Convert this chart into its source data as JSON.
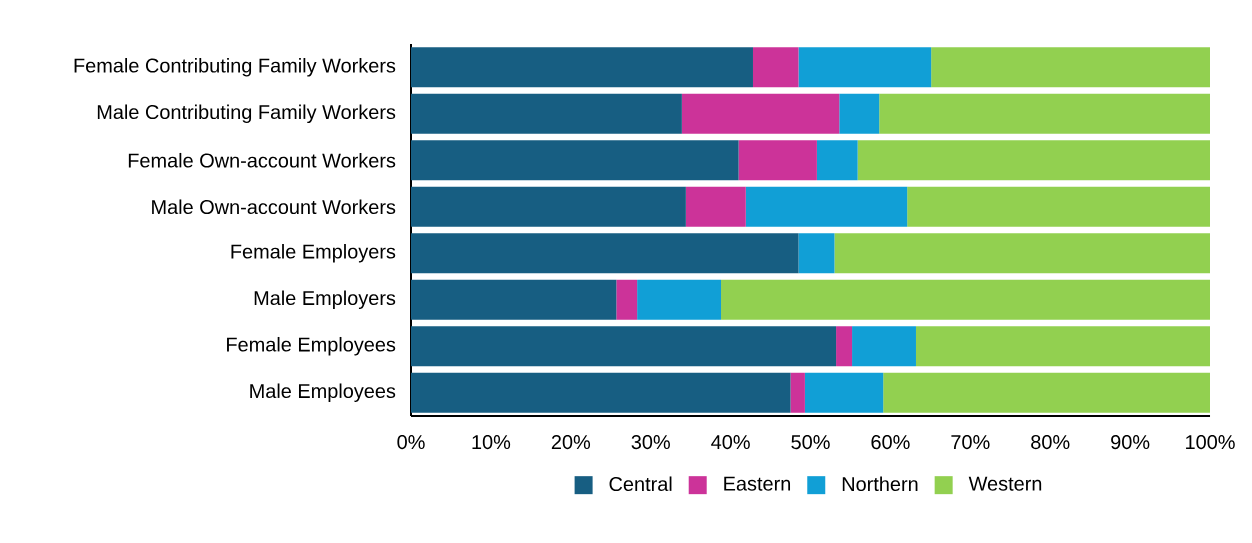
{
  "chart_data": {
    "type": "bar",
    "orientation": "horizontal",
    "stacked": true,
    "categories": [
      "Female Contributing Family Workers",
      "Male Contributing Family Workers",
      "Female Own-account Workers",
      "Male Own-account Workers",
      "Female Employers",
      "Male Employers",
      "Female Employees",
      "Male Employees"
    ],
    "series": [
      {
        "name": "Central",
        "color": "#175e82",
        "values": [
          42.8,
          33.9,
          41.0,
          34.4,
          48.5,
          25.7,
          53.2,
          47.5
        ]
      },
      {
        "name": "Eastern",
        "color": "#cc3399",
        "values": [
          5.7,
          19.7,
          9.8,
          7.5,
          0,
          2.6,
          2.0,
          1.8
        ]
      },
      {
        "name": "Northern",
        "color": "#119fd6",
        "values": [
          16.6,
          5.0,
          5.1,
          20.2,
          4.5,
          10.5,
          8.0,
          9.8
        ]
      },
      {
        "name": "Western",
        "color": "#92d050",
        "values": [
          34.9,
          41.4,
          44.1,
          37.9,
          47.0,
          61.2,
          36.8,
          40.9
        ]
      }
    ],
    "xlim": [
      0,
      100
    ],
    "xticks": [
      {
        "value": 0,
        "label": "0%"
      },
      {
        "value": 10,
        "label": "10%"
      },
      {
        "value": 20,
        "label": "20%"
      },
      {
        "value": 30,
        "label": "30%"
      },
      {
        "value": 40,
        "label": "40%"
      },
      {
        "value": 50,
        "label": "50%"
      },
      {
        "value": 60,
        "label": "60%"
      },
      {
        "value": 70,
        "label": "70%"
      },
      {
        "value": 80,
        "label": "80%"
      },
      {
        "value": 90,
        "label": "90%"
      },
      {
        "value": 100,
        "label": "100%"
      }
    ],
    "legend": "bottom"
  }
}
